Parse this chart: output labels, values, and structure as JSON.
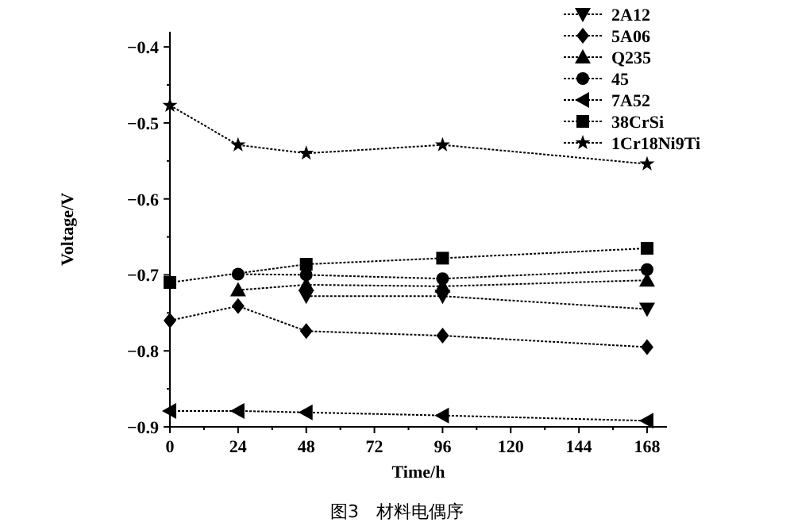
{
  "chart_data": {
    "type": "line",
    "xlabel": "Time/h",
    "ylabel": "Voltage/V",
    "annotations": [
      "图3　材料电偶序"
    ],
    "x": [
      0,
      24,
      48,
      96,
      168
    ],
    "xlim": [
      0,
      175
    ],
    "xticks": [
      0,
      24,
      48,
      72,
      96,
      120,
      144,
      168
    ],
    "ylim": [
      -0.9,
      -0.38
    ],
    "yticks": [
      {
        "value": -0.4,
        "label": "−0.4"
      },
      {
        "value": -0.5,
        "label": "−0.5"
      },
      {
        "value": -0.6,
        "label": "−0.6"
      },
      {
        "value": -0.7,
        "label": "−0.7"
      },
      {
        "value": -0.8,
        "label": "−0.8"
      },
      {
        "value": -0.9,
        "label": "−0.9"
      }
    ],
    "grid": false,
    "legend": "top right",
    "line_style": "dotted",
    "series": [
      {
        "name": "2A12",
        "color": "#000000",
        "marker": "triangle-down",
        "values": [
          null,
          null,
          -0.728,
          -0.728,
          -0.745
        ]
      },
      {
        "name": "5A06",
        "color": "#000000",
        "marker": "diamond",
        "values": [
          -0.76,
          -0.741,
          -0.774,
          -0.78,
          -0.795
        ]
      },
      {
        "name": "Q235",
        "color": "#000000",
        "marker": "triangle",
        "values": [
          null,
          -0.72,
          -0.713,
          -0.715,
          -0.707
        ]
      },
      {
        "name": "45",
        "color": "#000000",
        "marker": "circle",
        "values": [
          null,
          -0.699,
          -0.7,
          -0.705,
          -0.693
        ]
      },
      {
        "name": "7A52",
        "color": "#000000",
        "marker": "triangle-left",
        "values": [
          -0.879,
          -0.879,
          -0.881,
          -0.885,
          -0.892
        ]
      },
      {
        "name": "38CrSi",
        "color": "#000000",
        "marker": "square",
        "values": [
          -0.71,
          null,
          -0.686,
          -0.678,
          -0.665
        ]
      },
      {
        "name": "1Cr18Ni9Ti",
        "color": "#000000",
        "marker": "star",
        "values": [
          -0.477,
          -0.529,
          -0.54,
          -0.529,
          -0.554
        ]
      }
    ]
  }
}
